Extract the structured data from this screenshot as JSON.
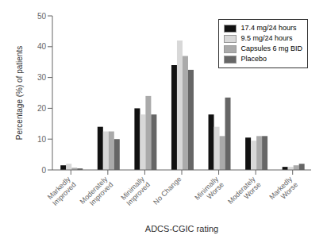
{
  "chart_data": {
    "type": "bar",
    "categories": [
      "Markedly\nImproved",
      "Moderately\nImproved",
      "Minimally\nImproved",
      "No Change",
      "Minimally\nWorse",
      "Moderately\nWorse",
      "Markedly\nWorse"
    ],
    "series": [
      {
        "name": "17.4 mg/24 hours",
        "color": "#111111",
        "values": [
          1.5,
          14,
          20,
          34,
          18,
          10.5,
          1
        ]
      },
      {
        "name": "9.5 mg/24 hours",
        "color": "#d8d8d8",
        "values": [
          2,
          12.5,
          18,
          42,
          14,
          9.5,
          1
        ]
      },
      {
        "name": "Capsules 6 mg BID",
        "color": "#aaaaaa",
        "values": [
          0.7,
          12.5,
          24,
          37,
          11,
          11,
          1.5
        ]
      },
      {
        "name": "Placebo",
        "color": "#666666",
        "values": [
          0.5,
          10,
          18,
          32.5,
          23.5,
          11,
          2
        ]
      }
    ],
    "xlabel": "ADCS-CGIC rating",
    "ylabel": "Percentage (%) of patients",
    "ylim": [
      0,
      50
    ],
    "yticks": [
      0,
      10,
      20,
      30,
      40,
      50
    ],
    "legend": "upper right"
  }
}
